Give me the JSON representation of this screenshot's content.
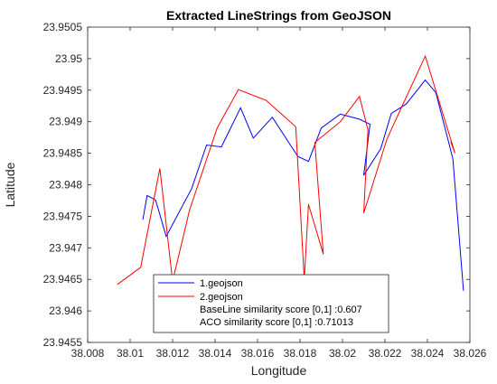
{
  "chart_data": {
    "type": "line",
    "title": "Extracted LineStrings from GeoJSON",
    "xlabel": "Longitude",
    "ylabel": "Latitude",
    "xlim": [
      38.008,
      38.026
    ],
    "ylim": [
      23.9455,
      23.9505
    ],
    "xticks": [
      38.008,
      38.01,
      38.012,
      38.014,
      38.016,
      38.018,
      38.02,
      38.022,
      38.024,
      38.026
    ],
    "xtick_labels": [
      "38.008",
      "38.01",
      "38.012",
      "38.014",
      "38.016",
      "38.018",
      "38.02",
      "38.022",
      "38.024",
      "38.026"
    ],
    "yticks": [
      23.9455,
      23.946,
      23.9465,
      23.947,
      23.9475,
      23.948,
      23.9485,
      23.949,
      23.9495,
      23.95,
      23.9505
    ],
    "ytick_labels": [
      "23.9455",
      "23.946",
      "23.9465",
      "23.947",
      "23.9475",
      "23.948",
      "23.9485",
      "23.949",
      "23.9495",
      "23.95",
      "23.9505"
    ],
    "grid": false,
    "legend_position": "bottom-center",
    "legend": [
      {
        "label": "1.geojson",
        "color": "#0000ff",
        "line": true
      },
      {
        "label": "2.geojson",
        "color": "#ff0000",
        "line": true
      },
      {
        "label": "BaseLine similarity score [0,1] :0.607",
        "line": false
      },
      {
        "label": "ACO similarity score [0,1] :0.71013",
        "line": false
      }
    ],
    "series": [
      {
        "name": "1.geojson",
        "color": "#0000ff",
        "points": [
          [
            38.0106,
            23.94745
          ],
          [
            38.0108,
            23.94783
          ],
          [
            38.0112,
            23.94776
          ],
          [
            38.0117,
            23.94718
          ],
          [
            38.0129,
            23.94794
          ],
          [
            38.0136,
            23.94863
          ],
          [
            38.0143,
            23.9486
          ],
          [
            38.0152,
            23.94922
          ],
          [
            38.0158,
            23.94874
          ],
          [
            38.0167,
            23.94907
          ],
          [
            38.0179,
            23.94845
          ],
          [
            38.0184,
            23.94837
          ],
          [
            38.019,
            23.9489
          ],
          [
            38.0199,
            23.94912
          ],
          [
            38.0208,
            23.94904
          ],
          [
            38.0213,
            23.94896
          ],
          [
            38.021,
            23.94815
          ],
          [
            38.0218,
            23.94857
          ],
          [
            38.0223,
            23.94913
          ],
          [
            38.023,
            23.94928
          ],
          [
            38.0239,
            23.94966
          ],
          [
            38.0244,
            23.94946
          ],
          [
            38.0252,
            23.94841
          ],
          [
            38.0257,
            23.94632
          ]
        ]
      },
      {
        "name": "2.geojson",
        "color": "#ff0000",
        "points": [
          [
            38.0094,
            23.94642
          ],
          [
            38.0105,
            23.94669
          ],
          [
            38.0114,
            23.94826
          ],
          [
            38.012,
            23.94647
          ],
          [
            38.0128,
            23.9476
          ],
          [
            38.0137,
            23.9485
          ],
          [
            38.0141,
            23.9489
          ],
          [
            38.0151,
            23.94951
          ],
          [
            38.0164,
            23.94934
          ],
          [
            38.0178,
            23.94892
          ],
          [
            38.0182,
            23.9465
          ],
          [
            38.0184,
            23.94769
          ],
          [
            38.0191,
            23.9469
          ],
          [
            38.0187,
            23.94867
          ],
          [
            38.0199,
            23.949
          ],
          [
            38.0208,
            23.9494
          ],
          [
            38.0212,
            23.94887
          ],
          [
            38.021,
            23.94755
          ],
          [
            38.0221,
            23.94873
          ],
          [
            38.0239,
            23.95004
          ],
          [
            38.0253,
            23.9485
          ],
          [
            38.0251,
            23.94868
          ]
        ]
      }
    ]
  }
}
